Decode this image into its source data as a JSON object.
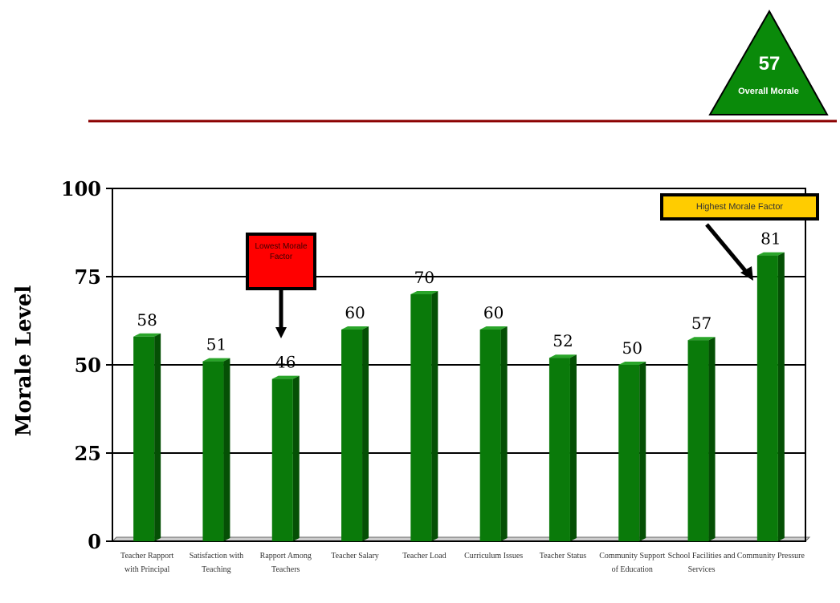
{
  "badge": {
    "value": "57",
    "label": "Overall Morale",
    "color": "#0a8a0a"
  },
  "callouts": {
    "lowest": "Lowest Morale Factor",
    "highest": "Highest Morale Factor"
  },
  "colors": {
    "bar": "#0a7a0a",
    "bar_dark": "#055005",
    "bar_top": "#2aa52a",
    "rule": "#8b0000"
  },
  "chart_data": {
    "type": "bar",
    "ylabel": "Morale Level",
    "ylim": [
      0,
      100
    ],
    "yticks": [
      "0",
      "25",
      "50",
      "75",
      "100"
    ],
    "grid": true,
    "categories": [
      "Teacher Rapport with Principal",
      "Satisfaction with Teaching",
      "Rapport Among Teachers",
      "Teacher Salary",
      "Teacher Load",
      "Curriculum Issues",
      "Teacher Status",
      "Community Support of Education",
      "School Facilities and Services",
      "Community Pressure"
    ],
    "values": [
      58,
      51,
      46,
      60,
      70,
      60,
      52,
      50,
      57,
      81
    ],
    "value_labels": [
      "58",
      "51",
      "46",
      "60",
      "70",
      "60",
      "52",
      "50",
      "57",
      "81"
    ]
  }
}
